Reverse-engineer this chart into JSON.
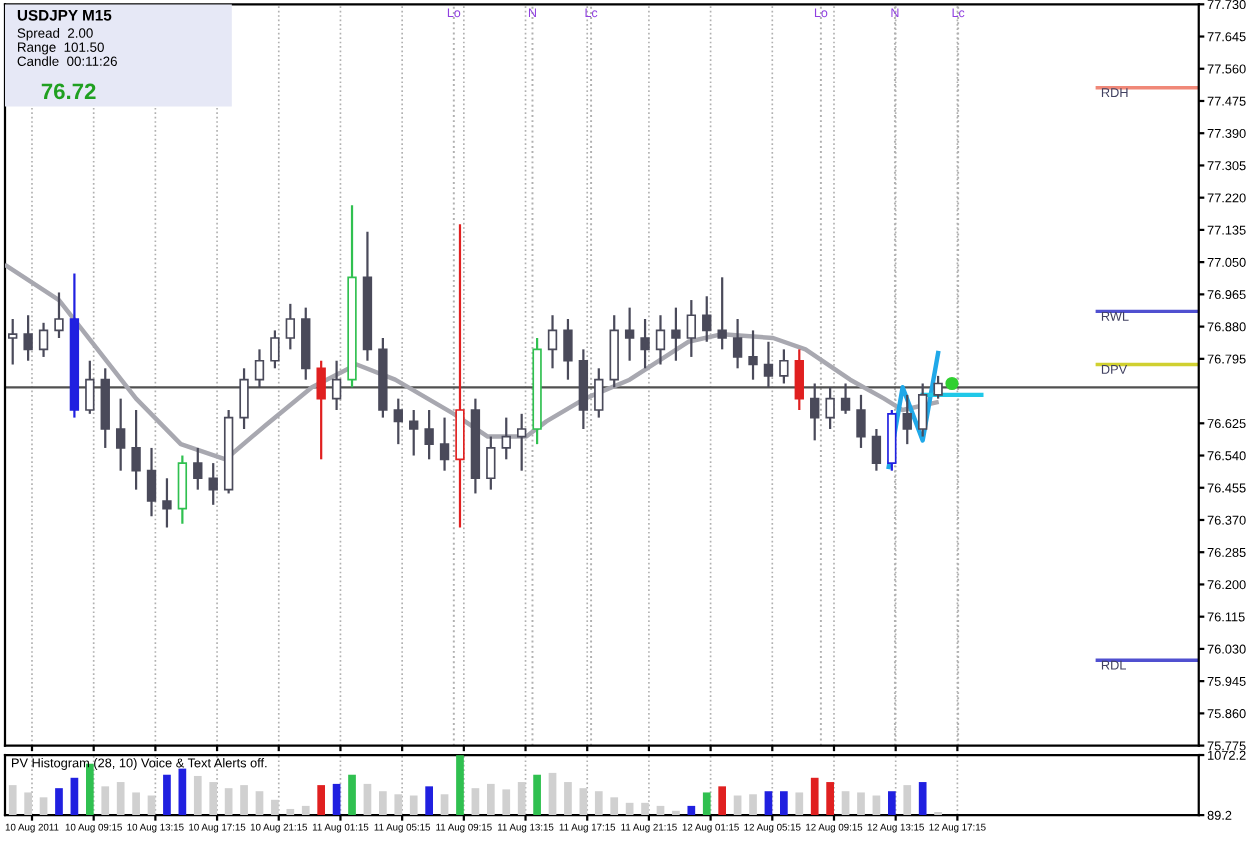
{
  "chart_data": [
    {
      "type": "candlestick",
      "title": "USDJPY M15",
      "annotations": [
        "Spread  2.00",
        "Range  101.50",
        "Candle  00:11:26",
        "76.72"
      ],
      "x": [
        "2011-08-10T04:00",
        "2011-08-10T05:00",
        "2011-08-10T06:00",
        "2011-08-10T07:00",
        "2011-08-10T08:00",
        "2011-08-10T09:00",
        "2011-08-10T10:00",
        "2011-08-10T11:00",
        "2011-08-10T12:00",
        "2011-08-10T13:00",
        "2011-08-10T14:00",
        "2011-08-10T15:00",
        "2011-08-10T16:00",
        "2011-08-10T17:00",
        "2011-08-10T18:00",
        "2011-08-10T19:00",
        "2011-08-10T20:00",
        "2011-08-10T21:00",
        "2011-08-10T22:00",
        "2011-08-10T23:00",
        "2011-08-11T00:00",
        "2011-08-11T01:00",
        "2011-08-11T02:00",
        "2011-08-11T03:00",
        "2011-08-11T04:00",
        "2011-08-11T05:00",
        "2011-08-11T06:00",
        "2011-08-11T07:00",
        "2011-08-11T08:00",
        "2011-08-11T09:00",
        "2011-08-11T10:00",
        "2011-08-11T11:00",
        "2011-08-11T12:00",
        "2011-08-11T13:00",
        "2011-08-11T14:00",
        "2011-08-11T15:00",
        "2011-08-11T16:00",
        "2011-08-11T17:00",
        "2011-08-11T18:00",
        "2011-08-11T19:00",
        "2011-08-11T20:00",
        "2011-08-11T21:00",
        "2011-08-11T22:00",
        "2011-08-11T23:00",
        "2011-08-12T00:00",
        "2011-08-12T01:00",
        "2011-08-12T02:00",
        "2011-08-12T03:00",
        "2011-08-12T04:00",
        "2011-08-12T05:00",
        "2011-08-12T06:00",
        "2011-08-12T07:00",
        "2011-08-12T08:00",
        "2011-08-12T09:00",
        "2011-08-12T10:00",
        "2011-08-12T11:00",
        "2011-08-12T12:00",
        "2011-08-12T13:00",
        "2011-08-12T14:00",
        "2011-08-12T15:00",
        "2011-08-12T16:00"
      ],
      "ohlc": [
        [
          76.85,
          76.9,
          76.78,
          76.86
        ],
        [
          76.86,
          76.91,
          76.79,
          76.82
        ],
        [
          76.82,
          76.89,
          76.8,
          76.87
        ],
        [
          76.87,
          76.97,
          76.85,
          76.9
        ],
        [
          76.9,
          77.02,
          76.64,
          76.66
        ],
        [
          76.66,
          76.79,
          76.65,
          76.74
        ],
        [
          76.74,
          76.77,
          76.56,
          76.61
        ],
        [
          76.61,
          76.69,
          76.5,
          76.56
        ],
        [
          76.56,
          76.66,
          76.45,
          76.5
        ],
        [
          76.5,
          76.56,
          76.38,
          76.42
        ],
        [
          76.42,
          76.48,
          76.35,
          76.4
        ],
        [
          76.4,
          76.54,
          76.36,
          76.52
        ],
        [
          76.52,
          76.56,
          76.45,
          76.48
        ],
        [
          76.48,
          76.52,
          76.41,
          76.45
        ],
        [
          76.45,
          76.66,
          76.44,
          76.64
        ],
        [
          76.64,
          76.77,
          76.61,
          76.74
        ],
        [
          76.74,
          76.82,
          76.72,
          76.79
        ],
        [
          76.79,
          76.87,
          76.77,
          76.85
        ],
        [
          76.85,
          76.94,
          76.82,
          76.9
        ],
        [
          76.9,
          76.93,
          76.74,
          76.77
        ],
        [
          76.77,
          76.79,
          76.53,
          76.69
        ],
        [
          76.69,
          76.79,
          76.66,
          76.74
        ],
        [
          76.74,
          77.2,
          76.72,
          77.01
        ],
        [
          77.01,
          77.13,
          76.79,
          76.82
        ],
        [
          76.82,
          76.85,
          76.64,
          76.66
        ],
        [
          76.66,
          76.69,
          76.57,
          76.63
        ],
        [
          76.63,
          76.66,
          76.54,
          76.61
        ],
        [
          76.61,
          76.66,
          76.53,
          76.57
        ],
        [
          76.57,
          76.64,
          76.5,
          76.53
        ],
        [
          76.53,
          77.15,
          76.35,
          76.66
        ],
        [
          76.66,
          76.69,
          76.44,
          76.48
        ],
        [
          76.48,
          76.59,
          76.45,
          76.56
        ],
        [
          76.56,
          76.64,
          76.53,
          76.59
        ],
        [
          76.59,
          76.65,
          76.5,
          76.61
        ],
        [
          76.61,
          76.85,
          76.57,
          76.82
        ],
        [
          76.82,
          76.91,
          76.77,
          76.87
        ],
        [
          76.87,
          76.9,
          76.74,
          76.79
        ],
        [
          76.79,
          76.82,
          76.61,
          76.66
        ],
        [
          76.66,
          76.77,
          76.64,
          76.74
        ],
        [
          76.74,
          76.91,
          76.72,
          76.87
        ],
        [
          76.87,
          76.93,
          76.79,
          76.85
        ],
        [
          76.85,
          76.9,
          76.77,
          76.82
        ],
        [
          76.82,
          76.91,
          76.78,
          76.87
        ],
        [
          76.87,
          76.93,
          76.79,
          76.85
        ],
        [
          76.85,
          76.95,
          76.8,
          76.91
        ],
        [
          76.91,
          76.96,
          76.84,
          76.87
        ],
        [
          76.87,
          77.01,
          76.82,
          76.85
        ],
        [
          76.85,
          76.9,
          76.77,
          76.8
        ],
        [
          76.8,
          76.87,
          76.74,
          76.78
        ],
        [
          76.78,
          76.84,
          76.72,
          76.75
        ],
        [
          76.75,
          76.82,
          76.73,
          76.79
        ],
        [
          76.79,
          76.82,
          76.66,
          76.69
        ],
        [
          76.69,
          76.73,
          76.58,
          76.64
        ],
        [
          76.64,
          76.72,
          76.61,
          76.69
        ],
        [
          76.69,
          76.73,
          76.65,
          76.66
        ],
        [
          76.66,
          76.7,
          76.56,
          76.59
        ],
        [
          76.59,
          76.61,
          76.5,
          76.52
        ],
        [
          76.52,
          76.66,
          76.5,
          76.65
        ],
        [
          76.65,
          76.7,
          76.57,
          76.61
        ],
        [
          76.61,
          76.73,
          76.59,
          76.7
        ],
        [
          76.7,
          76.75,
          76.69,
          76.73
        ]
      ],
      "colors": [
        "#4a4a5a",
        "#4a4a5a",
        "#4a4a5a",
        "#4a4a5a",
        "#2020e0",
        "#4a4a5a",
        "#4a4a5a",
        "#4a4a5a",
        "#4a4a5a",
        "#4a4a5a",
        "#4a4a5a",
        "#30c050",
        "#4a4a5a",
        "#4a4a5a",
        "#4a4a5a",
        "#4a4a5a",
        "#4a4a5a",
        "#4a4a5a",
        "#4a4a5a",
        "#4a4a5a",
        "#e02020",
        "#4a4a5a",
        "#30c050",
        "#4a4a5a",
        "#4a4a5a",
        "#4a4a5a",
        "#4a4a5a",
        "#4a4a5a",
        "#4a4a5a",
        "#e02020",
        "#4a4a5a",
        "#4a4a5a",
        "#4a4a5a",
        "#4a4a5a",
        "#30c050",
        "#4a4a5a",
        "#4a4a5a",
        "#4a4a5a",
        "#4a4a5a",
        "#4a4a5a",
        "#4a4a5a",
        "#4a4a5a",
        "#4a4a5a",
        "#4a4a5a",
        "#4a4a5a",
        "#4a4a5a",
        "#4a4a5a",
        "#4a4a5a",
        "#4a4a5a",
        "#4a4a5a",
        "#4a4a5a",
        "#e02020",
        "#4a4a5a",
        "#4a4a5a",
        "#4a4a5a",
        "#4a4a5a",
        "#4a4a5a",
        "#2020e0",
        "#4a4a5a",
        "#4a4a5a",
        "#4a4a5a"
      ],
      "series": [
        {
          "type": "line",
          "color": "#a8a8b0",
          "x": [
            "2011-08-10T03:36",
            "2011-08-10T07:00",
            "2011-08-10T12:00",
            "2011-08-10T14:54",
            "2011-08-10T17:48",
            "2011-08-10T20:24",
            "2011-08-10T23:24",
            "2011-08-11T02:18",
            "2011-08-11T04:48",
            "2011-08-11T08:36",
            "2011-08-11T10:48",
            "2011-08-11T13:18",
            "2011-08-11T14:36",
            "2011-08-11T17:06",
            "2011-08-11T20:00",
            "2011-08-11T23:48",
            "2011-08-12T02:00",
            "2011-08-12T05:18",
            "2011-08-12T07:24",
            "2011-08-12T10:18",
            "2011-08-12T12:30",
            "2011-08-12T13:42",
            "2011-08-12T15:54"
          ],
          "values": [
            77.04,
            76.95,
            76.69,
            76.57,
            76.53,
            76.62,
            76.72,
            76.78,
            76.74,
            76.65,
            76.59,
            76.59,
            76.63,
            76.69,
            76.74,
            76.84,
            76.86,
            76.85,
            76.82,
            76.74,
            76.69,
            76.66,
            76.68
          ]
        },
        {
          "type": "line",
          "color": "#20a8e8",
          "x": [
            "2011-08-12T12:48",
            "2011-08-12T13:42",
            "2011-08-12T15:00",
            "2011-08-12T16:00"
          ],
          "values": [
            76.51,
            76.72,
            76.58,
            76.81
          ]
        },
        {
          "type": "line",
          "color": "#20c8e8",
          "x": [
            "2011-08-12T15:00",
            "2011-08-12T18:48"
          ],
          "values": [
            76.7,
            76.7
          ]
        },
        {
          "type": "scatter",
          "color": "#30d030",
          "marker": "circle",
          "x": [
            "2011-08-12T16:54"
          ],
          "values": [
            76.73
          ]
        }
      ],
      "xlim": [
        "2011-08-10T03:30",
        "2011-08-13T08:54"
      ],
      "xticks": [
        {
          "value": "2011-08-10T05:15",
          "label": null
        },
        {
          "value": "2011-08-10T09:15",
          "label": null
        },
        {
          "value": "2011-08-10T13:15",
          "label": null
        },
        {
          "value": "2011-08-10T17:15",
          "label": null
        },
        {
          "value": "2011-08-10T21:15",
          "label": null
        },
        {
          "value": "2011-08-11T01:15",
          "label": null
        },
        {
          "value": "2011-08-11T05:15",
          "label": null
        },
        {
          "value": "2011-08-11T09:15",
          "label": null
        },
        {
          "value": "2011-08-11T13:15",
          "label": null
        },
        {
          "value": "2011-08-11T17:15",
          "label": null
        },
        {
          "value": "2011-08-11T21:15",
          "label": null
        },
        {
          "value": "2011-08-12T01:15",
          "label": null
        },
        {
          "value": "2011-08-12T05:15",
          "label": null
        },
        {
          "value": "2011-08-12T09:15",
          "label": null
        },
        {
          "value": "2011-08-12T13:15",
          "label": null
        },
        {
          "value": "2011-08-12T17:15",
          "label": null
        }
      ],
      "ylim": [
        75.775,
        77.73
      ],
      "yticks": [
        {
          "value": 77.73,
          "label": "77.730"
        },
        77.645,
        {
          "value": 77.56,
          "label": "77.560"
        },
        77.475,
        {
          "value": 77.39,
          "label": "77.390"
        },
        77.305,
        {
          "value": 77.22,
          "label": "77.220"
        },
        77.135,
        {
          "value": 77.05,
          "label": "77.050"
        },
        76.965,
        {
          "value": 76.88,
          "label": "76.880"
        },
        76.795,
        76.625,
        {
          "value": 76.54,
          "label": "76.540"
        },
        76.455,
        {
          "value": 76.37,
          "label": "76.370"
        },
        76.285,
        {
          "value": 76.2,
          "label": "76.200"
        },
        76.115,
        {
          "value": 76.03,
          "label": "76.030"
        },
        75.945,
        {
          "value": 75.86,
          "label": "75.860"
        },
        75.775
      ],
      "tick_labels": "y",
      "grid": "x",
      "ref_lines": [
        {
          "axis": "y",
          "value": 77.51,
          "label": "RDH",
          "color": "#f08878"
        },
        {
          "axis": "y",
          "value": 76.92,
          "label": "RWL",
          "color": "#5050d0"
        },
        {
          "axis": "y",
          "value": 76.78,
          "label": "DPV",
          "color": "#d0d030"
        },
        {
          "axis": "y",
          "value": 76.0,
          "label": "RDL",
          "color": "#5050d0"
        },
        {
          "axis": "y",
          "value": 76.72,
          "color": "#505050"
        },
        {
          "axis": "x",
          "value": "2011-08-11T08:36",
          "label": "Lo",
          "color": "#b0b0b0",
          "line_style": "dotted"
        },
        {
          "axis": "x",
          "value": "2011-08-11T13:42",
          "label": "N",
          "color": "#b0b0b0",
          "line_style": "dotted"
        },
        {
          "axis": "x",
          "value": "2011-08-11T17:30",
          "label": "Lc",
          "color": "#b0b0b0",
          "line_style": "dotted"
        },
        {
          "axis": "x",
          "value": "2011-08-12T08:24",
          "label": "Lo",
          "color": "#b0b0b0",
          "line_style": "dotted"
        },
        {
          "axis": "x",
          "value": "2011-08-12T13:12",
          "label": "N",
          "color": "#b0b0b0",
          "line_style": "dotted"
        },
        {
          "axis": "x",
          "value": "2011-08-12T17:18",
          "label": "Lc",
          "color": "#b0b0b0",
          "line_style": "dotted"
        }
      ]
    },
    {
      "type": "bar",
      "title": "PV Histogram (28, 10) Voice & Text Alerts off.",
      "x": [
        "2011-08-10T04:00",
        "2011-08-10T05:00",
        "2011-08-10T06:00",
        "2011-08-10T07:00",
        "2011-08-10T08:00",
        "2011-08-10T09:00",
        "2011-08-10T10:00",
        "2011-08-10T11:00",
        "2011-08-10T12:00",
        "2011-08-10T13:00",
        "2011-08-10T14:00",
        "2011-08-10T15:00",
        "2011-08-10T16:00",
        "2011-08-10T17:00",
        "2011-08-10T18:00",
        "2011-08-10T19:00",
        "2011-08-10T20:00",
        "2011-08-10T21:00",
        "2011-08-10T22:00",
        "2011-08-10T23:00",
        "2011-08-11T00:00",
        "2011-08-11T01:00",
        "2011-08-11T02:00",
        "2011-08-11T03:00",
        "2011-08-11T04:00",
        "2011-08-11T05:00",
        "2011-08-11T06:00",
        "2011-08-11T07:00",
        "2011-08-11T08:00",
        "2011-08-11T09:00",
        "2011-08-11T10:00",
        "2011-08-11T11:00",
        "2011-08-11T12:00",
        "2011-08-11T13:00",
        "2011-08-11T14:00",
        "2011-08-11T15:00",
        "2011-08-11T16:00",
        "2011-08-11T17:00",
        "2011-08-11T18:00",
        "2011-08-11T19:00",
        "2011-08-11T20:00",
        "2011-08-11T21:00",
        "2011-08-11T22:00",
        "2011-08-11T23:00",
        "2011-08-12T00:00",
        "2011-08-12T01:00",
        "2011-08-12T02:00",
        "2011-08-12T03:00",
        "2011-08-12T04:00",
        "2011-08-12T05:00",
        "2011-08-12T06:00",
        "2011-08-12T07:00",
        "2011-08-12T08:00",
        "2011-08-12T09:00",
        "2011-08-12T10:00",
        "2011-08-12T11:00",
        "2011-08-12T12:00",
        "2011-08-12T13:00",
        "2011-08-12T14:00",
        "2011-08-12T15:00",
        "2011-08-12T16:00"
      ],
      "values": [
        580,
        460,
        380,
        530,
        700,
        930,
        560,
        630,
        460,
        410,
        750,
        850,
        730,
        630,
        530,
        580,
        480,
        340,
        190,
        240,
        580,
        600,
        750,
        600,
        480,
        430,
        410,
        560,
        430,
        1070,
        530,
        600,
        510,
        630,
        750,
        780,
        630,
        530,
        480,
        380,
        290,
        290,
        240,
        160,
        240,
        460,
        560,
        410,
        430,
        480,
        480,
        460,
        700,
        630,
        480,
        460,
        410,
        480,
        580,
        630,
        140
      ],
      "colors": [
        "#d0d0d0",
        "#d0d0d0",
        "#d0d0d0",
        "#2020e0",
        "#2020e0",
        "#30c050",
        "#d0d0d0",
        "#d0d0d0",
        "#d0d0d0",
        "#d0d0d0",
        "#2020e0",
        "#2020e0",
        "#d0d0d0",
        "#d0d0d0",
        "#d0d0d0",
        "#d0d0d0",
        "#d0d0d0",
        "#d0d0d0",
        "#d0d0d0",
        "#d0d0d0",
        "#e02020",
        "#2020e0",
        "#30c050",
        "#d0d0d0",
        "#d0d0d0",
        "#d0d0d0",
        "#d0d0d0",
        "#2020e0",
        "#d0d0d0",
        "#30c050",
        "#d0d0d0",
        "#d0d0d0",
        "#d0d0d0",
        "#d0d0d0",
        "#30c050",
        "#d0d0d0",
        "#d0d0d0",
        "#d0d0d0",
        "#d0d0d0",
        "#d0d0d0",
        "#d0d0d0",
        "#d0d0d0",
        "#d0d0d0",
        "#d0d0d0",
        "#2020e0",
        "#30c050",
        "#e02020",
        "#d0d0d0",
        "#d0d0d0",
        "#2020e0",
        "#2020e0",
        "#d0d0d0",
        "#e02020",
        "#e02020",
        "#d0d0d0",
        "#d0d0d0",
        "#d0d0d0",
        "#2020e0",
        "#d0d0d0",
        "#2020e0",
        "#d0d0d0"
      ],
      "xlim": [
        "2011-08-10T03:30",
        "2011-08-13T08:54"
      ],
      "xticks": [
        {
          "value": "2011-08-10T05:15",
          "label": "10 Aug 2011"
        },
        {
          "value": "2011-08-10T09:15",
          "label": "10 Aug 09:15"
        },
        {
          "value": "2011-08-10T13:15",
          "label": "10 Aug 13:15"
        },
        {
          "value": "2011-08-10T17:15",
          "label": "10 Aug 17:15"
        },
        {
          "value": "2011-08-10T21:15",
          "label": "10 Aug 21:15"
        },
        {
          "value": "2011-08-11T01:15",
          "label": "11 Aug 01:15"
        },
        {
          "value": "2011-08-11T05:15",
          "label": "11 Aug 05:15"
        },
        {
          "value": "2011-08-11T09:15",
          "label": "11 Aug 09:15"
        },
        {
          "value": "2011-08-11T13:15",
          "label": "11 Aug 13:15"
        },
        {
          "value": "2011-08-11T17:15",
          "label": "11 Aug 17:15"
        },
        {
          "value": "2011-08-11T21:15",
          "label": "11 Aug 21:15"
        },
        {
          "value": "2011-08-12T01:15",
          "label": "12 Aug 01:15"
        },
        {
          "value": "2011-08-12T05:15",
          "label": "12 Aug 05:15"
        },
        {
          "value": "2011-08-12T09:15",
          "label": "12 Aug 09:15"
        },
        {
          "value": "2011-08-12T13:15",
          "label": "12 Aug 13:15"
        },
        {
          "value": "2011-08-12T17:15",
          "label": "12 Aug 17:15"
        }
      ],
      "ylim": [
        89.2,
        1072.2
      ],
      "yticks": [
        1072.2,
        89.2
      ],
      "grid": "x"
    }
  ]
}
